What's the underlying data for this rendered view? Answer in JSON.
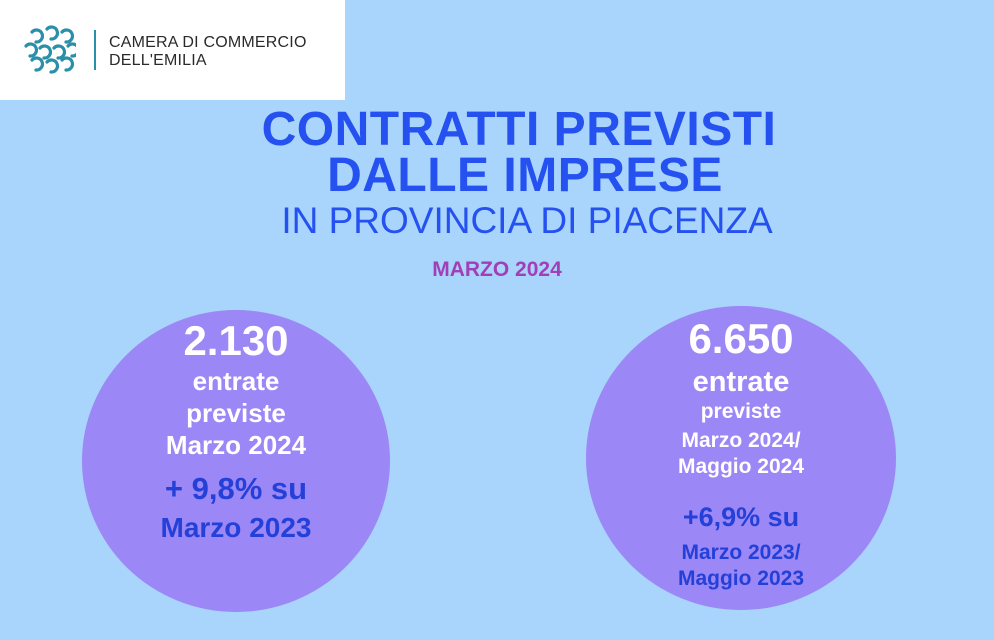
{
  "logo": {
    "line1": "CAMERA DI COMMERCIO",
    "line2": "DELL'EMILIA"
  },
  "title": {
    "line1": "CONTRATTI PREVISTI",
    "line2": "DALLE IMPRESE",
    "subtitle": "IN PROVINCIA DI PIACENZA",
    "period": "MARZO  2024"
  },
  "left_circle": {
    "value": "2.130",
    "line1": "entrate",
    "line2": "previste",
    "line3": "Marzo 2024",
    "change": "+ 9,8% su",
    "compare": "Marzo  2023"
  },
  "right_circle": {
    "value": "6.650",
    "line1": "entrate",
    "line2": "previste",
    "line3": "Marzo 2024/",
    "line4": "Maggio 2024",
    "change": "+6,9% su",
    "compare1": "Marzo 2023/",
    "compare2": "Maggio 2023"
  },
  "colors": {
    "background": "#a9d4fb",
    "title_blue": "#2451f0",
    "period_purple": "#a13fb8",
    "circle": "#9b87f5",
    "logo_teal": "#2a8fa8"
  }
}
